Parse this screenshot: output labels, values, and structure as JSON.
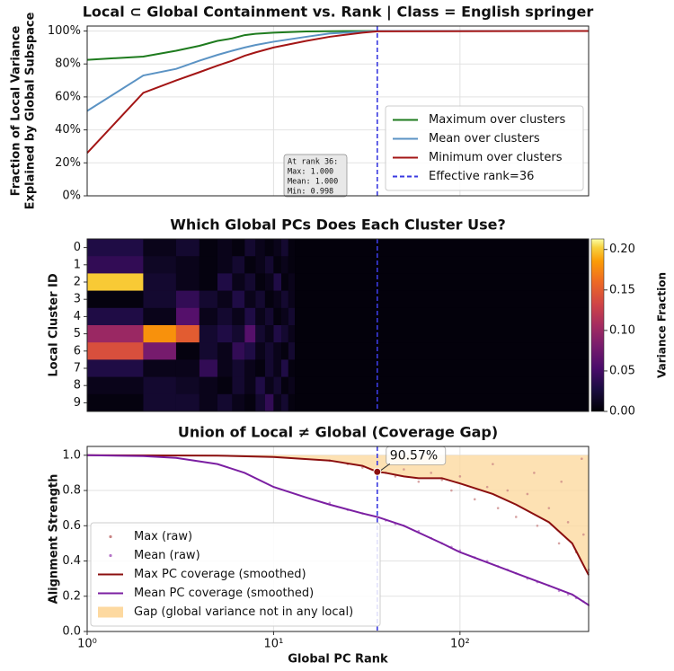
{
  "chart_data": [
    {
      "type": "line",
      "title": "Local ⊂ Global Containment vs. Rank | Class = English springer",
      "ylabel": [
        "Fraction of Local Variance",
        "Explained by Global Subspace"
      ],
      "xscale": "log",
      "xlim": [
        1,
        490
      ],
      "xticks": [
        1,
        10,
        100
      ],
      "grid": true,
      "ylim": [
        0,
        103
      ],
      "yticks": [
        {
          "value": 0,
          "label": "0%"
        },
        {
          "value": 20,
          "label": "20%"
        },
        {
          "value": 40,
          "label": "40%"
        },
        {
          "value": 60,
          "label": "60%"
        },
        {
          "value": 80,
          "label": "80%"
        },
        {
          "value": 100,
          "label": "100%"
        }
      ],
      "legend": "lower right",
      "series": [
        {
          "name": "Maximum over clusters",
          "color": "#1e7b1e",
          "x": [
            1,
            2,
            3,
            4,
            5,
            6,
            7,
            8,
            10,
            15,
            20,
            36,
            490
          ],
          "values": [
            82.5,
            84.5,
            88,
            91,
            94,
            95.5,
            97.5,
            98.3,
            99,
            99.7,
            99.9,
            100,
            100
          ]
        },
        {
          "name": "Mean over clusters",
          "color": "#5b93c4",
          "x": [
            1,
            2,
            3,
            4,
            5,
            6,
            7,
            8,
            10,
            15,
            20,
            30,
            36,
            490
          ],
          "values": [
            51.5,
            73,
            77,
            82,
            85.5,
            88,
            90,
            91.5,
            93.5,
            96.5,
            98.5,
            99.5,
            100,
            100
          ]
        },
        {
          "name": "Minimum over clusters",
          "color": "#a31515",
          "x": [
            1,
            2,
            3,
            4,
            5,
            6,
            7,
            8,
            10,
            15,
            20,
            30,
            36,
            490
          ],
          "values": [
            26,
            62.5,
            70,
            75,
            79,
            82,
            85,
            87,
            90,
            94,
            96.5,
            99,
            99.8,
            100
          ]
        }
      ],
      "vline": {
        "x": 36,
        "label": "Effective rank=36",
        "color": "#3a3ae0"
      },
      "annotation": {
        "lines": [
          "At rank 36:",
          "Max: 1.000",
          "Mean: 1.000",
          "Min: 0.998"
        ]
      }
    },
    {
      "type": "heatmap",
      "title": "Which Global PCs Does Each Cluster Use?",
      "ylabel": "Local Cluster ID",
      "colorbar_label": "Variance Fraction",
      "colormap": "inferno",
      "xscale": "log",
      "xlim": [
        1,
        490
      ],
      "xticks": [
        1,
        10,
        100
      ],
      "xbins": [
        1,
        2,
        3,
        4,
        5,
        6,
        7,
        8,
        9,
        10,
        11,
        12,
        13,
        490
      ],
      "rows": [
        0,
        1,
        2,
        3,
        4,
        5,
        6,
        7,
        8,
        9
      ],
      "values": [
        [
          0.03,
          0.01,
          0.02,
          0.005,
          0.01,
          0.005,
          0.02,
          0.01,
          0.005,
          0.01,
          0.02,
          0.005,
          0.003
        ],
        [
          0.04,
          0.015,
          0.01,
          0.005,
          0.01,
          0.02,
          0.005,
          0.01,
          0.02,
          0.005,
          0.01,
          0.005,
          0.003
        ],
        [
          0.2,
          0.02,
          0.01,
          0.005,
          0.03,
          0.01,
          0.02,
          0.005,
          0.01,
          0.03,
          0.005,
          0.01,
          0.003
        ],
        [
          0.005,
          0.02,
          0.04,
          0.02,
          0.01,
          0.03,
          0.01,
          0.02,
          0.005,
          0.01,
          0.02,
          0.01,
          0.003
        ],
        [
          0.03,
          0.01,
          0.06,
          0.01,
          0.02,
          0.01,
          0.03,
          0.01,
          0.02,
          0.005,
          0.01,
          0.02,
          0.003
        ],
        [
          0.1,
          0.18,
          0.15,
          0.02,
          0.03,
          0.02,
          0.06,
          0.02,
          0.01,
          0.03,
          0.02,
          0.01,
          0.003
        ],
        [
          0.14,
          0.08,
          0.005,
          0.02,
          0.01,
          0.04,
          0.03,
          0.01,
          0.02,
          0.01,
          0.005,
          0.02,
          0.003
        ],
        [
          0.03,
          0.01,
          0.01,
          0.04,
          0.01,
          0.02,
          0.01,
          0.005,
          0.02,
          0.01,
          0.03,
          0.005,
          0.003
        ],
        [
          0.01,
          0.02,
          0.015,
          0.01,
          0.005,
          0.02,
          0.01,
          0.03,
          0.01,
          0.02,
          0.005,
          0.01,
          0.003
        ],
        [
          0.005,
          0.02,
          0.02,
          0.01,
          0.02,
          0.01,
          0.005,
          0.02,
          0.04,
          0.01,
          0.02,
          0.005,
          0.003
        ]
      ],
      "clim": [
        0,
        0.213
      ],
      "cticks": [
        {
          "value": 0,
          "label": "0.00"
        },
        {
          "value": 0.05,
          "label": "0.05"
        },
        {
          "value": 0.1,
          "label": "0.10"
        },
        {
          "value": 0.15,
          "label": "0.15"
        },
        {
          "value": 0.2,
          "label": "0.20"
        }
      ],
      "vline": {
        "x": 36,
        "color": "#3a3ae0"
      }
    },
    {
      "type": "line",
      "title": "Union of Local ≠ Global (Coverage Gap)",
      "xlabel": "Global PC Rank",
      "ylabel": "Alignment Strength",
      "xscale": "log",
      "xlim": [
        1,
        490
      ],
      "xticks": [
        {
          "value": 1,
          "label": "10⁰"
        },
        {
          "value": 10,
          "label": "10¹"
        },
        {
          "value": 100,
          "label": "10²"
        }
      ],
      "grid": true,
      "ylim": [
        0,
        1.05
      ],
      "yticks": [
        {
          "value": 0,
          "label": "0.0"
        },
        {
          "value": 0.2,
          "label": "0.2"
        },
        {
          "value": 0.4,
          "label": "0.4"
        },
        {
          "value": 0.6,
          "label": "0.6"
        },
        {
          "value": 0.8,
          "label": "0.8"
        },
        {
          "value": 1,
          "label": "1.0"
        }
      ],
      "legend": "lower left",
      "series": [
        {
          "name": "Max (raw)",
          "color": "#c98484",
          "marker": "dot",
          "x": [
            20,
            25,
            30,
            40,
            45,
            50,
            60,
            70,
            80,
            90,
            100,
            120,
            140,
            160,
            180,
            200,
            230,
            260,
            300,
            340,
            380,
            420,
            460,
            490,
            150,
            250,
            350,
            450
          ],
          "values": [
            0.97,
            0.95,
            0.93,
            0.9,
            0.88,
            0.92,
            0.85,
            0.9,
            0.86,
            0.8,
            0.88,
            0.75,
            0.82,
            0.7,
            0.8,
            0.65,
            0.78,
            0.6,
            0.7,
            0.5,
            0.62,
            0.45,
            0.55,
            0.35,
            0.95,
            0.9,
            0.85,
            0.98
          ]
        },
        {
          "name": "Mean (raw)",
          "color": "#b575c8",
          "marker": "dot",
          "x": [
            20,
            25,
            30,
            40,
            45,
            50,
            60,
            70,
            80,
            90,
            100,
            120,
            140,
            160,
            180,
            200,
            230,
            260,
            300,
            340,
            380,
            420,
            460,
            490
          ],
          "values": [
            0.73,
            0.69,
            0.67,
            0.63,
            0.61,
            0.6,
            0.57,
            0.53,
            0.5,
            0.48,
            0.46,
            0.42,
            0.4,
            0.37,
            0.35,
            0.33,
            0.3,
            0.28,
            0.26,
            0.23,
            0.21,
            0.19,
            0.17,
            0.15
          ]
        },
        {
          "name": "Max PC coverage (smoothed)",
          "color": "#8b0f0f",
          "x": [
            1,
            5,
            10,
            20,
            30,
            36,
            40,
            50,
            60,
            80,
            100,
            150,
            200,
            300,
            400,
            490
          ],
          "values": [
            1,
            0.998,
            0.99,
            0.97,
            0.94,
            0.9057,
            0.9,
            0.88,
            0.87,
            0.87,
            0.84,
            0.78,
            0.72,
            0.62,
            0.5,
            0.32
          ]
        },
        {
          "name": "Mean PC coverage (smoothed)",
          "color": "#7b1fa2",
          "x": [
            1,
            2,
            3,
            5,
            7,
            10,
            15,
            20,
            30,
            36,
            50,
            80,
            100,
            150,
            200,
            300,
            400,
            490
          ],
          "values": [
            1,
            0.995,
            0.985,
            0.95,
            0.9,
            0.82,
            0.76,
            0.72,
            0.67,
            0.65,
            0.6,
            0.5,
            0.45,
            0.38,
            0.33,
            0.26,
            0.21,
            0.15
          ]
        }
      ],
      "gap": {
        "name": "Gap (global variance not in any local)",
        "color": "#fdd9a0"
      },
      "vline": {
        "x": 36,
        "color": "#3a3ae0"
      },
      "annotation": {
        "x": 36,
        "y": 0.9057,
        "label": "90.57%"
      }
    }
  ]
}
